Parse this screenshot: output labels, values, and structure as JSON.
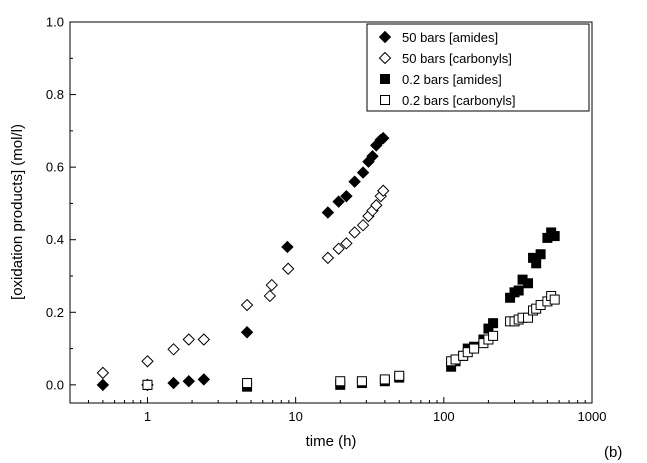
{
  "chart_data": {
    "type": "scatter",
    "xscale": "log",
    "xlabel": "time (h)",
    "ylabel": "[oxidation products] (mol/l)",
    "xlim": [
      0.3,
      1000
    ],
    "ylim": [
      -0.05,
      1.0
    ],
    "xticks": [
      1,
      10,
      100,
      1000
    ],
    "xtick_labels": [
      "1",
      "10",
      "100",
      "1000"
    ],
    "yticks": [
      0.0,
      0.2,
      0.4,
      0.6,
      0.8,
      1.0
    ],
    "ytick_labels": [
      "0.0",
      "0.2",
      "0.4",
      "0.6",
      "0.8",
      "1.0"
    ],
    "grid": false,
    "legend_position": "top-right",
    "panel_label": "(b)",
    "series": [
      {
        "name": "50 bars [amides]",
        "marker": "diamond",
        "filled": true,
        "points": [
          [
            0.5,
            0.0
          ],
          [
            1.0,
            0.0
          ],
          [
            1.5,
            0.005
          ],
          [
            1.9,
            0.01
          ],
          [
            2.4,
            0.015
          ],
          [
            4.7,
            0.145
          ],
          [
            8.8,
            0.38
          ],
          [
            16.5,
            0.475
          ],
          [
            19.5,
            0.505
          ],
          [
            22.0,
            0.52
          ],
          [
            25.0,
            0.56
          ],
          [
            28.5,
            0.585
          ],
          [
            31.0,
            0.615
          ],
          [
            33.0,
            0.63
          ],
          [
            35.0,
            0.66
          ],
          [
            37.5,
            0.675
          ],
          [
            39.0,
            0.68
          ]
        ]
      },
      {
        "name": "50 bars [carbonyls]",
        "marker": "diamond",
        "filled": false,
        "points": [
          [
            0.5,
            0.033
          ],
          [
            1.0,
            0.065
          ],
          [
            1.5,
            0.098
          ],
          [
            1.9,
            0.125
          ],
          [
            2.4,
            0.125
          ],
          [
            4.7,
            0.22
          ],
          [
            6.7,
            0.245
          ],
          [
            6.9,
            0.275
          ],
          [
            8.9,
            0.32
          ],
          [
            16.5,
            0.35
          ],
          [
            19.5,
            0.375
          ],
          [
            22.0,
            0.39
          ],
          [
            25.0,
            0.42
          ],
          [
            28.5,
            0.44
          ],
          [
            31.0,
            0.465
          ],
          [
            33.0,
            0.48
          ],
          [
            35.0,
            0.495
          ],
          [
            37.5,
            0.52
          ],
          [
            39.0,
            0.535
          ]
        ]
      },
      {
        "name": "0.2 bars [amides]",
        "marker": "square",
        "filled": true,
        "points": [
          [
            1.0,
            0.0
          ],
          [
            4.7,
            -0.005
          ],
          [
            20.0,
            0.0
          ],
          [
            28.0,
            0.005
          ],
          [
            40.0,
            0.01
          ],
          [
            50.0,
            0.02
          ],
          [
            112,
            0.05
          ],
          [
            120,
            0.065
          ],
          [
            135,
            0.08
          ],
          [
            145,
            0.1
          ],
          [
            160,
            0.105
          ],
          [
            185,
            0.125
          ],
          [
            200,
            0.155
          ],
          [
            215,
            0.17
          ],
          [
            280,
            0.24
          ],
          [
            300,
            0.255
          ],
          [
            320,
            0.26
          ],
          [
            340,
            0.29
          ],
          [
            370,
            0.28
          ],
          [
            400,
            0.35
          ],
          [
            420,
            0.335
          ],
          [
            450,
            0.36
          ],
          [
            500,
            0.405
          ],
          [
            530,
            0.42
          ],
          [
            560,
            0.41
          ]
        ]
      },
      {
        "name": "0.2 bars [carbonyls]",
        "marker": "square",
        "filled": false,
        "points": [
          [
            1.0,
            0.0
          ],
          [
            4.7,
            0.005
          ],
          [
            20.0,
            0.01
          ],
          [
            28.0,
            0.01
          ],
          [
            40.0,
            0.015
          ],
          [
            50.0,
            0.025
          ],
          [
            112,
            0.065
          ],
          [
            120,
            0.07
          ],
          [
            135,
            0.08
          ],
          [
            145,
            0.09
          ],
          [
            160,
            0.1
          ],
          [
            185,
            0.115
          ],
          [
            200,
            0.125
          ],
          [
            215,
            0.135
          ],
          [
            280,
            0.175
          ],
          [
            300,
            0.175
          ],
          [
            320,
            0.18
          ],
          [
            340,
            0.185
          ],
          [
            370,
            0.185
          ],
          [
            400,
            0.205
          ],
          [
            420,
            0.21
          ],
          [
            450,
            0.22
          ],
          [
            500,
            0.23
          ],
          [
            530,
            0.245
          ],
          [
            560,
            0.235
          ]
        ]
      }
    ]
  }
}
